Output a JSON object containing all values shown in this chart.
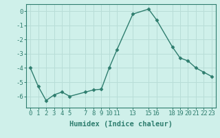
{
  "x": [
    0,
    1,
    2,
    3,
    4,
    5,
    7,
    8,
    9,
    10,
    11,
    13,
    15,
    16,
    18,
    19,
    20,
    21,
    22,
    23
  ],
  "y": [
    -4.0,
    -5.3,
    -6.3,
    -5.9,
    -5.7,
    -6.0,
    -5.7,
    -5.55,
    -5.5,
    -4.0,
    -2.7,
    -0.2,
    0.15,
    -0.6,
    -2.5,
    -3.3,
    -3.5,
    -4.0,
    -4.3,
    -4.6
  ],
  "line_color": "#2e7d6e",
  "marker_color": "#2e7d6e",
  "bg_color": "#cff0ea",
  "grid_color": "#b8ddd7",
  "xlabel": "Humidex (Indice chaleur)",
  "ylim": [
    -6.8,
    0.5
  ],
  "xlim": [
    -0.5,
    23.5
  ],
  "yticks": [
    0,
    -1,
    -2,
    -3,
    -4,
    -5,
    -6
  ],
  "xticks": [
    0,
    1,
    2,
    3,
    4,
    5,
    7,
    8,
    9,
    10,
    11,
    13,
    15,
    16,
    18,
    19,
    20,
    21,
    22,
    23
  ],
  "xlabel_fontsize": 7.5,
  "tick_fontsize": 6.5
}
